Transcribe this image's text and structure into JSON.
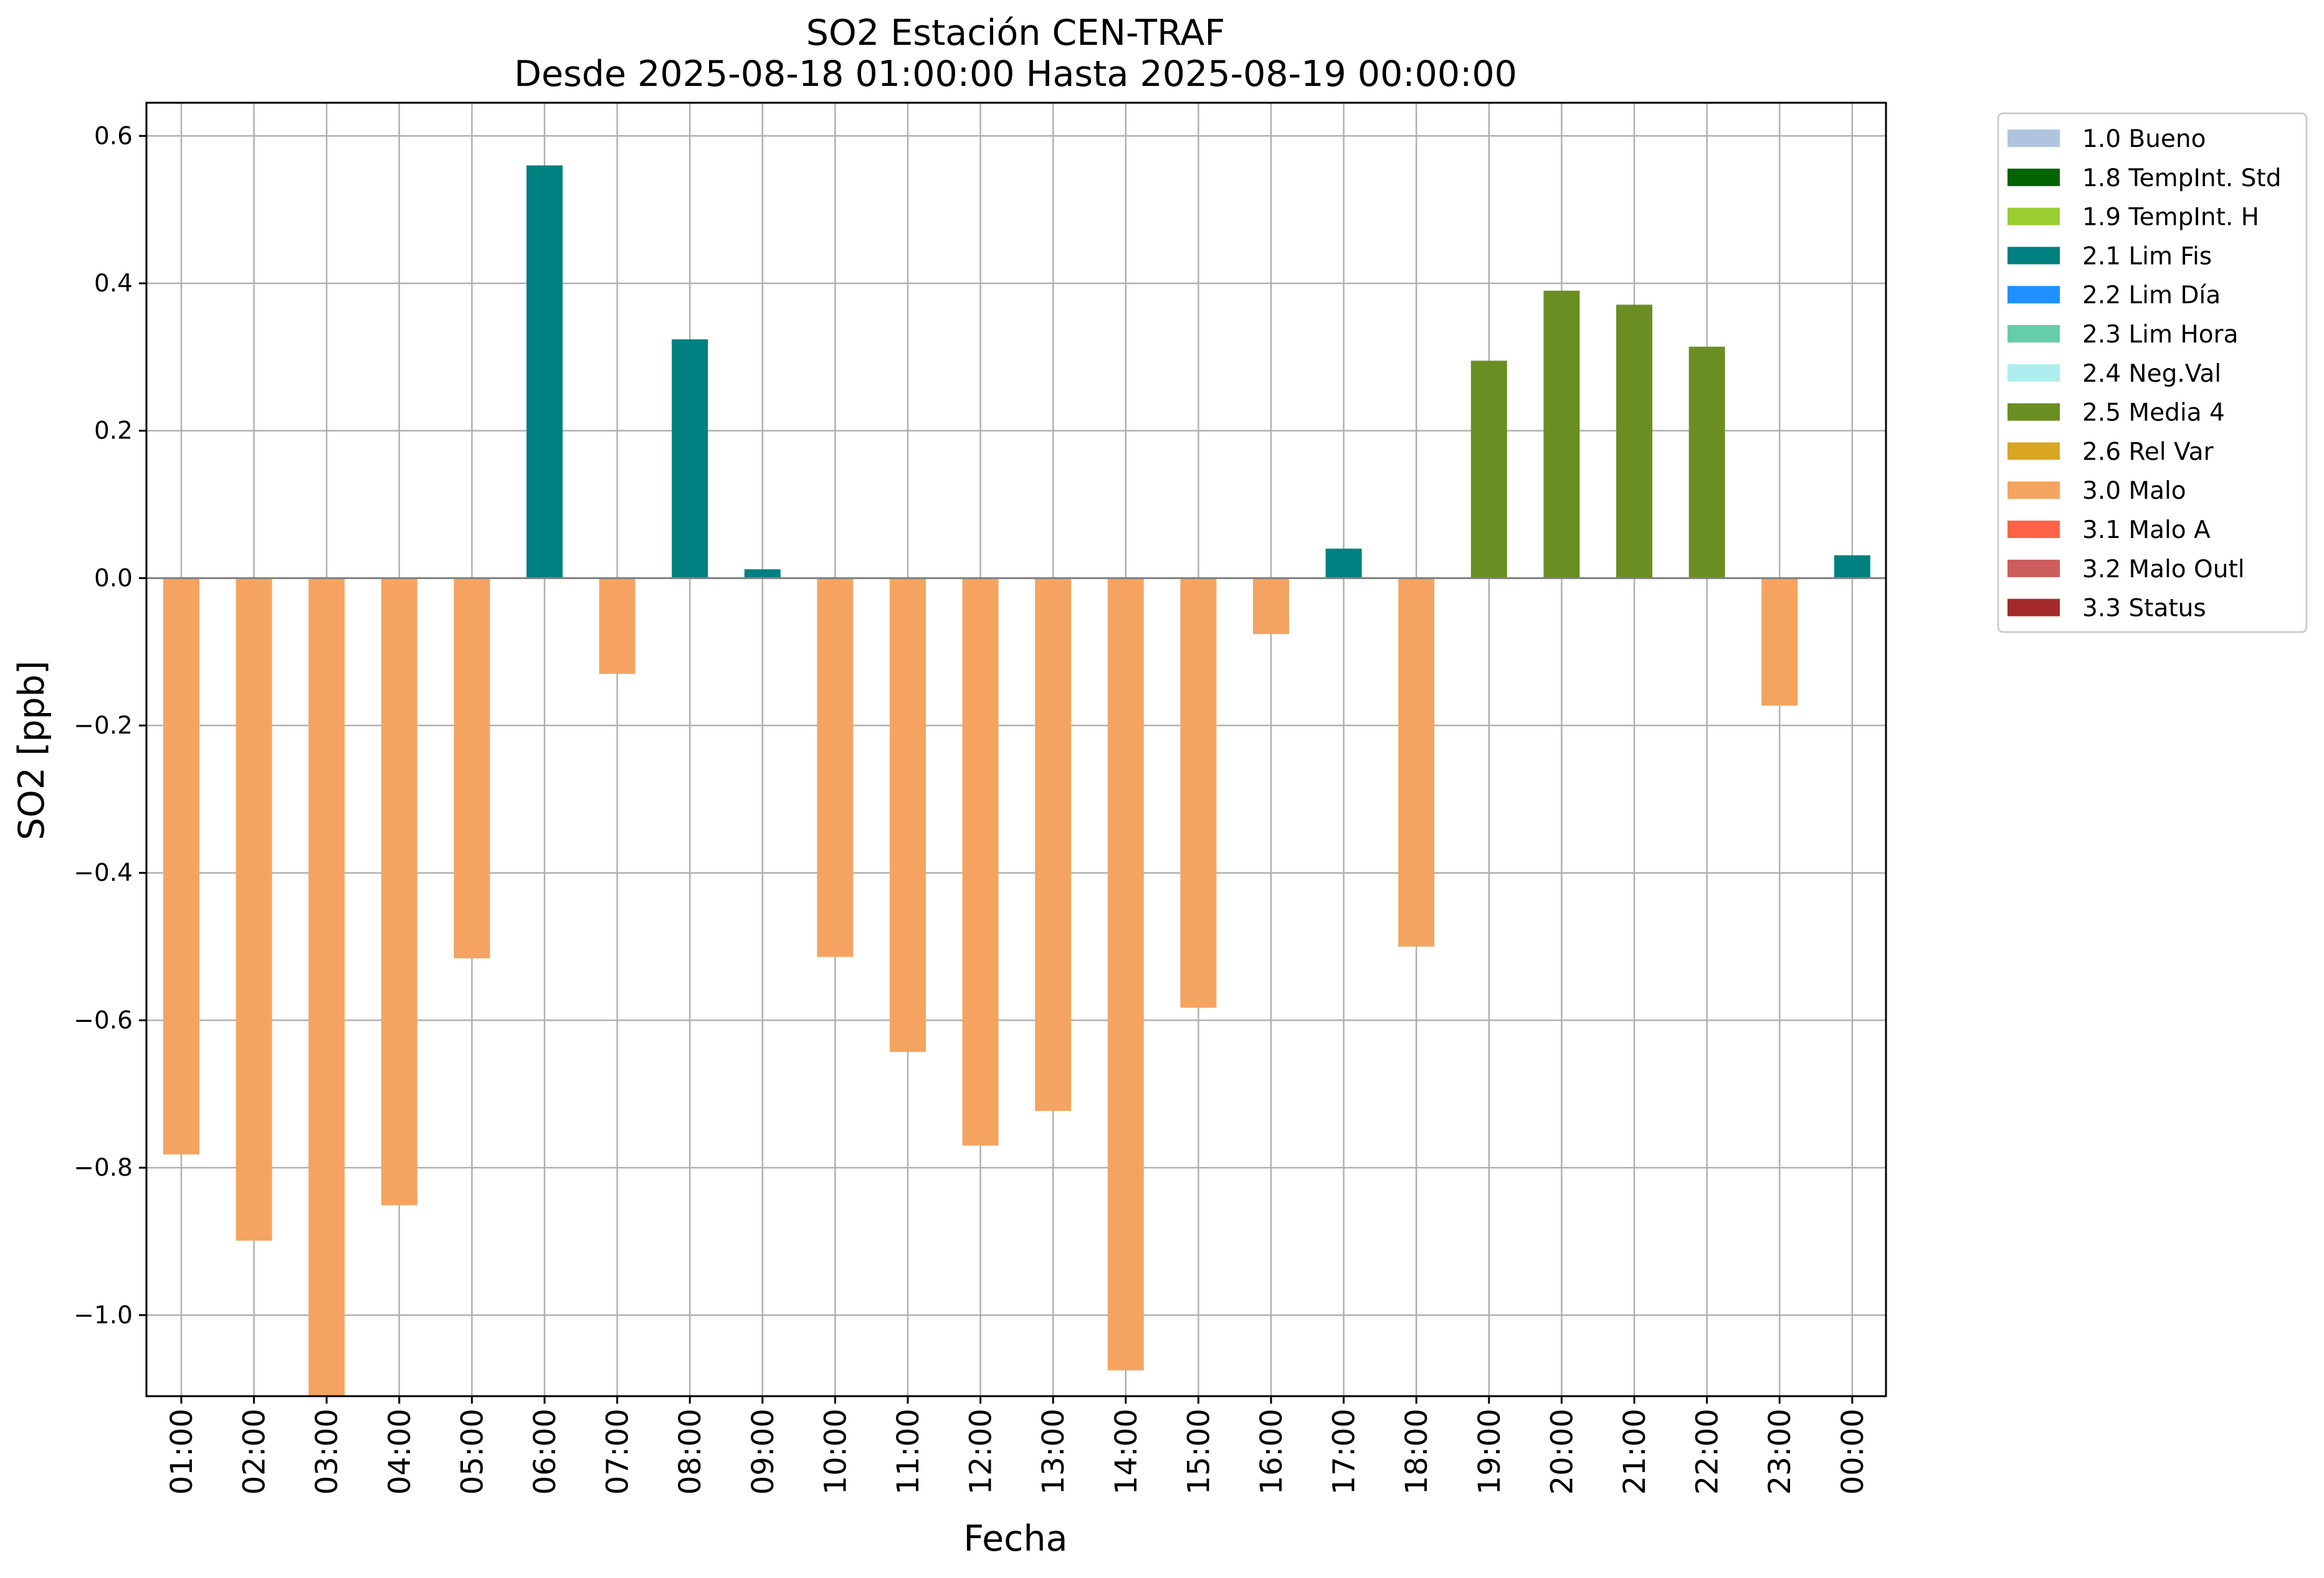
{
  "chart_data": {
    "type": "bar",
    "title": "SO2 Estación CEN-TRAF",
    "subtitle": "Desde 2025-08-18 01:00:00 Hasta 2025-08-19 00:00:00",
    "xlabel": "Fecha",
    "ylabel": "SO2 [ppb]",
    "ylim": [
      -1.11,
      0.645
    ],
    "yticks": [
      -1.0,
      -0.8,
      -0.6,
      -0.4,
      -0.2,
      0.0,
      0.2,
      0.4,
      0.6
    ],
    "ytick_labels": [
      "−1.0",
      "−0.8",
      "−0.6",
      "−0.4",
      "−0.2",
      "0.0",
      "0.2",
      "0.4",
      "0.6"
    ],
    "grid": true,
    "legend_position": "outside-top-right",
    "categories": [
      "01:00",
      "02:00",
      "03:00",
      "04:00",
      "05:00",
      "06:00",
      "07:00",
      "08:00",
      "09:00",
      "10:00",
      "11:00",
      "12:00",
      "13:00",
      "14:00",
      "15:00",
      "16:00",
      "17:00",
      "18:00",
      "19:00",
      "20:00",
      "21:00",
      "22:00",
      "23:00",
      "00:00"
    ],
    "values": [
      -0.782,
      -0.899,
      -1.11,
      -0.851,
      -0.516,
      0.56,
      -0.13,
      0.324,
      0.012,
      -0.514,
      -0.643,
      -0.77,
      -0.723,
      -1.075,
      -0.583,
      -0.076,
      0.04,
      -0.5,
      0.295,
      0.39,
      0.371,
      0.314,
      -0.173,
      0.031
    ],
    "flags": [
      "3.0 Malo",
      "3.0 Malo",
      "3.0 Malo",
      "3.0 Malo",
      "3.0 Malo",
      "2.1 Lim Fis",
      "3.0 Malo",
      "2.1 Lim Fis",
      "2.1 Lim Fis",
      "3.0 Malo",
      "3.0 Malo",
      "3.0 Malo",
      "3.0 Malo",
      "3.0 Malo",
      "3.0 Malo",
      "3.0 Malo",
      "2.1 Lim Fis",
      "3.0 Malo",
      "2.5 Media 4",
      "2.5 Media 4",
      "2.5 Media 4",
      "2.5 Media 4",
      "3.0 Malo",
      "2.1 Lim Fis"
    ],
    "legend": [
      {
        "label": "1.0 Bueno",
        "color": "#b0c4de"
      },
      {
        "label": "1.8 TempInt. Std",
        "color": "#006400"
      },
      {
        "label": "1.9 TempInt. H",
        "color": "#9acd32"
      },
      {
        "label": "2.1 Lim Fis",
        "color": "#008080"
      },
      {
        "label": "2.2 Lim Día",
        "color": "#1e90ff"
      },
      {
        "label": "2.3 Lim Hora",
        "color": "#66cdaa"
      },
      {
        "label": "2.4 Neg.Val",
        "color": "#afeeee"
      },
      {
        "label": "2.5 Media 4",
        "color": "#6b8e23"
      },
      {
        "label": "2.6 Rel Var",
        "color": "#daa520"
      },
      {
        "label": "3.0 Malo",
        "color": "#f4a460"
      },
      {
        "label": "3.1 Malo A",
        "color": "#ff6347"
      },
      {
        "label": "3.2 Malo Outl",
        "color": "#cd5c5c"
      },
      {
        "label": "3.3 Status",
        "color": "#a52a2a"
      }
    ]
  }
}
